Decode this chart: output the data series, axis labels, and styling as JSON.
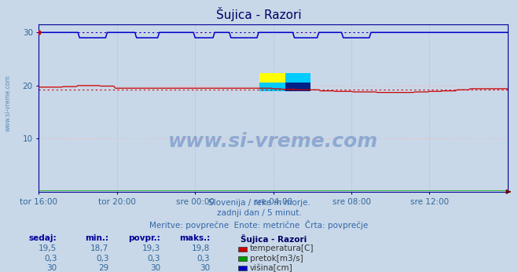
{
  "title": "Šujica - Razori",
  "bg_color": "#c8d8e8",
  "plot_bg_color": "#c8d8e8",
  "x_labels": [
    "tor 16:00",
    "tor 20:00",
    "sre 00:00",
    "sre 04:00",
    "sre 08:00",
    "sre 12:00"
  ],
  "x_ticks_pos": [
    0,
    48,
    96,
    144,
    192,
    240
  ],
  "n_points": 289,
  "ylim": [
    0,
    31.5
  ],
  "yticks": [
    10,
    20,
    30
  ],
  "temp_color": "#cc0000",
  "flow_color": "#00aa00",
  "height_color": "#0000cc",
  "grid_h_color": "#ffaaaa",
  "grid_v_color": "#aaaacc",
  "temp_sedaj": "19,5",
  "temp_min": "18,7",
  "temp_povpr": "19,3",
  "temp_maks": "19,8",
  "temp_povpr_val": 19.3,
  "flow_sedaj": "0,3",
  "flow_min": "0,3",
  "flow_povpr": "0,3",
  "flow_maks": "0,3",
  "height_sedaj": "30",
  "height_min": "29",
  "height_povpr": "30",
  "height_maks": "30",
  "height_povpr_val": 30.0,
  "subtitle1": "Slovenija / reke in morje.",
  "subtitle2": "zadnji dan / 5 minut.",
  "subtitle3": "Meritve: povprečne  Enote: metrične  Črta: povprečje",
  "col_headers": [
    "sedaj:",
    "min.:",
    "povpr.:",
    "maks.:",
    "Šujica - Razori"
  ],
  "legend_labels": [
    "temperatura[C]",
    "pretok[m3/s]",
    "višina[cm]"
  ],
  "legend_colors": [
    "#cc0000",
    "#009900",
    "#0000cc"
  ],
  "watermark": "www.si-vreme.com",
  "axis_color": "#000099",
  "tick_color": "#336699",
  "title_color": "#000066",
  "subtitle_color": "#3366aa",
  "table_num_color": "#336699",
  "table_head_color": "#000099",
  "station_color": "#000066"
}
